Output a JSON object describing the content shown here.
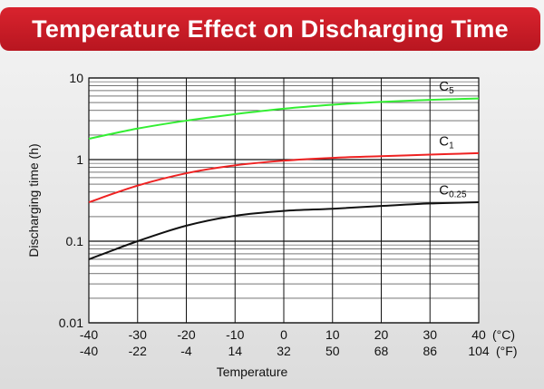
{
  "chart_data": {
    "type": "line",
    "title": "Temperature Effect on Discharging Time",
    "xlabel": "Temperature",
    "ylabel": "Discharging time (h)",
    "y_scale": "log",
    "ylim": [
      0.01,
      10
    ],
    "y_ticks": [
      "10",
      "1",
      "0.1",
      "0.01"
    ],
    "xlim": [
      -40,
      40
    ],
    "x_ticks_c": [
      "-40",
      "-30",
      "-20",
      "-10",
      "0",
      "10",
      "20",
      "30",
      "40"
    ],
    "x_ticks_f": [
      "-40",
      "-22",
      "-4",
      "14",
      "32",
      "50",
      "68",
      "86",
      "104"
    ],
    "x_unit_c": "(°C)",
    "x_unit_f": "(°F)",
    "grid": true,
    "series": [
      {
        "name": "C5",
        "label_base": "C",
        "label_sub": "5",
        "color": "#33ee33",
        "x": [
          -40,
          -30,
          -20,
          -10,
          0,
          10,
          20,
          30,
          40
        ],
        "y": [
          1.8,
          2.4,
          3.0,
          3.6,
          4.2,
          4.7,
          5.1,
          5.4,
          5.6
        ]
      },
      {
        "name": "C1",
        "label_base": "C",
        "label_sub": "1",
        "color": "#ee2222",
        "x": [
          -40,
          -30,
          -20,
          -10,
          0,
          10,
          20,
          30,
          40
        ],
        "y": [
          0.3,
          0.48,
          0.68,
          0.85,
          0.97,
          1.05,
          1.1,
          1.15,
          1.2
        ]
      },
      {
        "name": "C0.25",
        "label_base": "C",
        "label_sub": "0.25",
        "color": "#111111",
        "x": [
          -40,
          -30,
          -20,
          -10,
          0,
          10,
          20,
          30,
          40
        ],
        "y": [
          0.06,
          0.1,
          0.155,
          0.205,
          0.235,
          0.25,
          0.27,
          0.29,
          0.3
        ]
      }
    ]
  }
}
